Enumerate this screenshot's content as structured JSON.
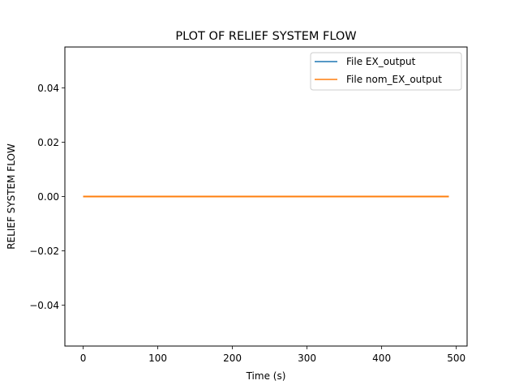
{
  "chart_data": {
    "type": "line",
    "title": "PLOT OF RELIEF SYSTEM FLOW",
    "xlabel": "Time (s)",
    "ylabel": "RELIEF SYSTEM FLOW",
    "xlim": [
      -24.5,
      514.5
    ],
    "ylim": [
      -0.055,
      0.055
    ],
    "xticks": [
      0,
      100,
      200,
      300,
      400,
      500
    ],
    "xtick_labels": [
      "0",
      "100",
      "200",
      "300",
      "400",
      "500"
    ],
    "yticks": [
      0.04,
      0.02,
      0.0,
      -0.02,
      -0.04
    ],
    "ytick_labels": [
      "0.04",
      "0.02",
      "0.00",
      "−0.02",
      "−0.04"
    ],
    "grid": false,
    "legend_position": "top-right",
    "series": [
      {
        "name": "File EX_output",
        "color": "#1f77b4",
        "x": [
          0,
          490
        ],
        "y": [
          0.0,
          0.0
        ]
      },
      {
        "name": "File nom_EX_output",
        "color": "#ff7f0e",
        "x": [
          0,
          490
        ],
        "y": [
          0.0,
          0.0
        ]
      }
    ]
  }
}
